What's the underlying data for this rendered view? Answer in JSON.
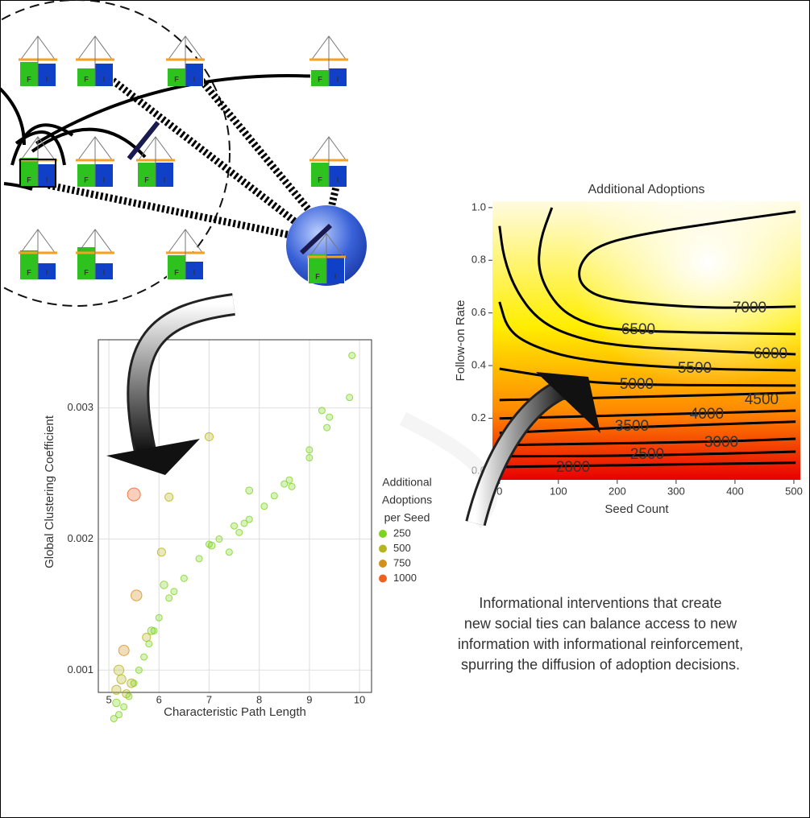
{
  "diagram": {
    "house_labels": [
      "F",
      "I"
    ]
  },
  "caption": [
    "Informational interventions that create",
    "new social ties can balance access to new",
    "information with informational reinforcement,",
    "spurring the diffusion of adoption decisions."
  ],
  "chart_data": [
    {
      "type": "scatter",
      "x_label": "Characteristic Path Length",
      "y_label": "Global Clustering Coefficient",
      "xlim": [
        4.79,
        10.24
      ],
      "ylim": [
        0.00083,
        0.00352
      ],
      "xticks": [
        5,
        6,
        7,
        8,
        9,
        10
      ],
      "yticks": [
        0.001,
        0.002,
        0.003
      ],
      "grid": true,
      "x": [
        9.85,
        9.8,
        9.25,
        9.4,
        9.35,
        9.0,
        9.0,
        8.6,
        8.5,
        8.65,
        8.3,
        7.8,
        8.1,
        7.8,
        7.7,
        7.5,
        7.6,
        7.2,
        7.05,
        7.4,
        7.0,
        6.8,
        6.5,
        6.3,
        6.2,
        6.0,
        5.9,
        5.8,
        5.7,
        5.6,
        5.5,
        5.4,
        5.3,
        5.2,
        5.1,
        7.0,
        6.2,
        6.05,
        5.5,
        5.55,
        5.3,
        5.2,
        5.25,
        5.15,
        5.75,
        5.85,
        6.1,
        5.45,
        5.35,
        5.15
      ],
      "values": [
        0.0034,
        0.00308,
        0.00298,
        0.00293,
        0.00285,
        0.00268,
        0.00262,
        0.00245,
        0.00242,
        0.0024,
        0.00233,
        0.00237,
        0.00225,
        0.00215,
        0.00212,
        0.0021,
        0.00205,
        0.002,
        0.00195,
        0.0019,
        0.00196,
        0.00185,
        0.0017,
        0.0016,
        0.00155,
        0.0014,
        0.0013,
        0.0012,
        0.0011,
        0.001,
        0.0009,
        0.0008,
        0.00072,
        0.00066,
        0.00063,
        0.00278,
        0.00232,
        0.0019,
        0.00234,
        0.00157,
        0.00115,
        0.001,
        0.00093,
        0.00085,
        0.00125,
        0.0013,
        0.00165,
        0.0009,
        0.00082,
        0.00075
      ],
      "sizes": [
        250,
        250,
        250,
        250,
        250,
        250,
        250,
        250,
        250,
        250,
        250,
        300,
        250,
        250,
        250,
        250,
        250,
        250,
        300,
        250,
        250,
        250,
        250,
        250,
        250,
        250,
        250,
        250,
        250,
        250,
        250,
        250,
        250,
        250,
        250,
        400,
        400,
        400,
        1000,
        700,
        650,
        600,
        500,
        500,
        400,
        350,
        350,
        450,
        400,
        350
      ],
      "size_legend": {
        "title": [
          "Additional",
          "Adoptions",
          "per Seed"
        ],
        "values": [
          250,
          500,
          750,
          1000
        ],
        "colors": [
          "#7ed321",
          "#b5b520",
          "#d4901c",
          "#f06020"
        ]
      }
    },
    {
      "type": "contour",
      "title": "Additional Adoptions",
      "x_label": "Seed Count",
      "y_label": "Follow-on Rate",
      "xlim": [
        -12,
        511
      ],
      "ylim": [
        -0.034,
        1.024
      ],
      "xticks": [
        0,
        100,
        200,
        300,
        400,
        500
      ],
      "yticks": [
        {
          "value": 0,
          "label": "0.0"
        },
        0.2,
        0.4,
        0.6,
        0.8,
        {
          "value": 1,
          "label": "1.0"
        }
      ],
      "colormap": [
        "#e80000",
        "#ff8a00",
        "#ffee00",
        "#fffbe0"
      ],
      "contours": [
        {
          "level": 7000,
          "x": [
            503,
            384,
            247,
            164,
            134,
            137,
            178,
            288,
            384,
            503
          ],
          "y": [
            0.985,
            0.948,
            0.902,
            0.856,
            0.78,
            0.703,
            0.651,
            0.627,
            0.618,
            0.624
          ]
        },
        {
          "level": 6500,
          "x": [
            89,
            68,
            66,
            96,
            137,
            192,
            315,
            503
          ],
          "y": [
            1.0,
            0.872,
            0.75,
            0.628,
            0.567,
            0.536,
            0.526,
            0.52
          ]
        },
        {
          "level": 6000,
          "x": [
            0,
            7,
            27,
            62,
            110,
            192,
            384,
            503
          ],
          "y": [
            0.93,
            0.81,
            0.688,
            0.581,
            0.52,
            0.474,
            0.453,
            0.443
          ]
        },
        {
          "level": 5500,
          "x": [
            0,
            14,
            55,
            137,
            315,
            503
          ],
          "y": [
            0.642,
            0.535,
            0.474,
            0.419,
            0.388,
            0.382
          ]
        },
        {
          "level": 5000,
          "x": [
            0,
            82,
            192,
            503
          ],
          "y": [
            0.388,
            0.358,
            0.327,
            0.324
          ]
        },
        {
          "level": 4500,
          "x": [
            0,
            247,
            503
          ],
          "y": [
            0.269,
            0.281,
            0.297
          ]
        },
        {
          "level": 4000,
          "x": [
            0,
            315,
            503
          ],
          "y": [
            0.199,
            0.217,
            0.229
          ]
        },
        {
          "level": 3500,
          "x": [
            0,
            247,
            503
          ],
          "y": [
            0.144,
            0.168,
            0.187
          ]
        },
        {
          "level": 3000,
          "x": [
            0,
            356,
            503
          ],
          "y": [
            0.098,
            0.11,
            0.122
          ]
        },
        {
          "level": 2500,
          "x": [
            0,
            247,
            503
          ],
          "y": [
            0.055,
            0.058,
            0.073
          ]
        },
        {
          "level": 2000,
          "x": [
            0,
            503
          ],
          "y": [
            0.015,
            0.031
          ]
        }
      ]
    }
  ]
}
